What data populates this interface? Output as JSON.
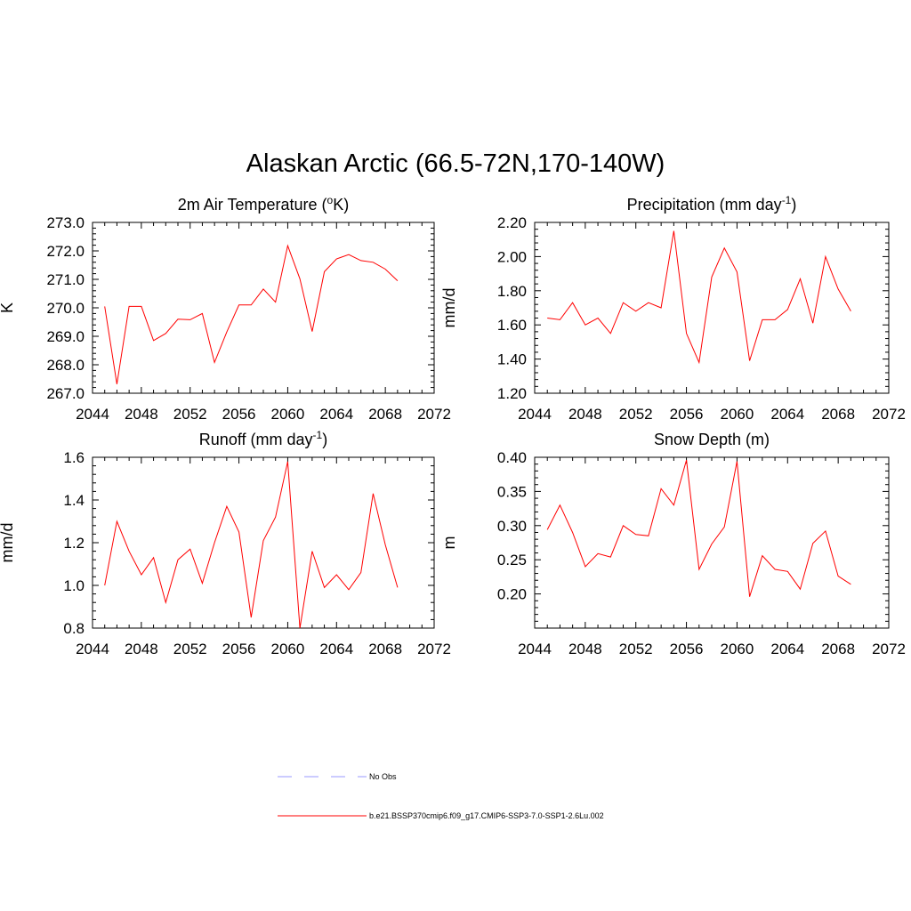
{
  "title": "Alaskan Arctic (66.5-72N,170-140W)",
  "legend": [
    {
      "label": "No Obs",
      "color": "#9999ff",
      "style": "dashed"
    },
    {
      "label": "b.e21.BSSP370cmip6.f09_g17.CMIP6-SSP3-7.0-SSP1-2.6Lu.002",
      "color": "#ff0000",
      "style": "solid"
    }
  ],
  "chart_data": [
    {
      "type": "line",
      "title": "2m Air Temperature (",
      "title_sup": "o",
      "title_after": "K)",
      "ylabel": "K",
      "xlim": [
        2044,
        2072
      ],
      "ylim": [
        267.0,
        273.0
      ],
      "xticks": [
        "2044",
        "2048",
        "2052",
        "2056",
        "2060",
        "2064",
        "2068",
        "2072"
      ],
      "yticks": [
        "267.0",
        "268.0",
        "269.0",
        "270.0",
        "271.0",
        "272.0",
        "273.0"
      ],
      "x": [
        2045,
        2046,
        2047,
        2048,
        2049,
        2050,
        2051,
        2052,
        2053,
        2054,
        2055,
        2056,
        2057,
        2058,
        2059,
        2060,
        2061,
        2062,
        2063,
        2064,
        2065,
        2066,
        2067,
        2068,
        2069
      ],
      "series": [
        {
          "color": "#ff0000",
          "values": [
            270.05,
            267.32,
            270.05,
            270.05,
            268.85,
            269.1,
            269.6,
            269.58,
            269.8,
            268.08,
            269.15,
            270.1,
            270.1,
            270.66,
            270.2,
            272.18,
            271.02,
            269.17,
            271.27,
            271.72,
            271.87,
            271.66,
            271.6,
            271.36,
            270.95
          ]
        }
      ]
    },
    {
      "type": "line",
      "title": "Precipitation (mm day",
      "title_sup": "-1",
      "title_after": ")",
      "ylabel": "mm/d",
      "xlim": [
        2044,
        2072
      ],
      "ylim": [
        1.2,
        2.2
      ],
      "xticks": [
        "2044",
        "2048",
        "2052",
        "2056",
        "2060",
        "2064",
        "2068",
        "2072"
      ],
      "yticks": [
        "1.20",
        "1.40",
        "1.60",
        "1.80",
        "2.00",
        "2.20"
      ],
      "x": [
        2045,
        2046,
        2047,
        2048,
        2049,
        2050,
        2051,
        2052,
        2053,
        2054,
        2055,
        2056,
        2057,
        2058,
        2059,
        2060,
        2061,
        2062,
        2063,
        2064,
        2065,
        2066,
        2067,
        2068,
        2069
      ],
      "series": [
        {
          "color": "#ff0000",
          "values": [
            1.64,
            1.63,
            1.73,
            1.6,
            1.64,
            1.55,
            1.73,
            1.68,
            1.73,
            1.7,
            2.15,
            1.55,
            1.38,
            1.88,
            2.05,
            1.91,
            1.39,
            1.63,
            1.63,
            1.69,
            1.87,
            1.61,
            2.0,
            1.81,
            1.68
          ]
        }
      ]
    },
    {
      "type": "line",
      "title": "Runoff (mm day",
      "title_sup": "-1",
      "title_after": ")",
      "ylabel": "mm/d",
      "xlim": [
        2044,
        2072
      ],
      "ylim": [
        0.8,
        1.6
      ],
      "xticks": [
        "2044",
        "2048",
        "2052",
        "2056",
        "2060",
        "2064",
        "2068",
        "2072"
      ],
      "yticks": [
        "0.8",
        "1.0",
        "1.2",
        "1.4",
        "1.6"
      ],
      "x": [
        2045,
        2046,
        2047,
        2048,
        2049,
        2050,
        2051,
        2052,
        2053,
        2054,
        2055,
        2056,
        2057,
        2058,
        2059,
        2060,
        2061,
        2062,
        2063,
        2064,
        2065,
        2066,
        2067,
        2068,
        2069
      ],
      "series": [
        {
          "color": "#ff0000",
          "values": [
            1.0,
            1.3,
            1.16,
            1.05,
            1.13,
            0.92,
            1.12,
            1.17,
            1.01,
            1.2,
            1.37,
            1.25,
            0.85,
            1.21,
            1.32,
            1.58,
            0.8,
            1.16,
            0.99,
            1.05,
            0.98,
            1.06,
            1.43,
            1.19,
            0.99
          ]
        }
      ]
    },
    {
      "type": "line",
      "title": "Snow Depth (m)",
      "title_sup": "",
      "title_after": "",
      "ylabel": "m",
      "xlim": [
        2044,
        2072
      ],
      "ylim": [
        0.15,
        0.4
      ],
      "xticks": [
        "2044",
        "2048",
        "2052",
        "2056",
        "2060",
        "2064",
        "2068",
        "2072"
      ],
      "yticks": [
        "0.20",
        "0.25",
        "0.30",
        "0.35",
        "0.40"
      ],
      "x": [
        2045,
        2046,
        2047,
        2048,
        2049,
        2050,
        2051,
        2052,
        2053,
        2054,
        2055,
        2056,
        2057,
        2058,
        2059,
        2060,
        2061,
        2062,
        2063,
        2064,
        2065,
        2066,
        2067,
        2068,
        2069
      ],
      "series": [
        {
          "color": "#ff0000",
          "values": [
            0.294,
            0.33,
            0.29,
            0.24,
            0.259,
            0.254,
            0.3,
            0.287,
            0.285,
            0.354,
            0.33,
            0.396,
            0.236,
            0.273,
            0.298,
            0.394,
            0.196,
            0.256,
            0.236,
            0.233,
            0.207,
            0.274,
            0.292,
            0.226,
            0.214
          ]
        }
      ]
    }
  ]
}
